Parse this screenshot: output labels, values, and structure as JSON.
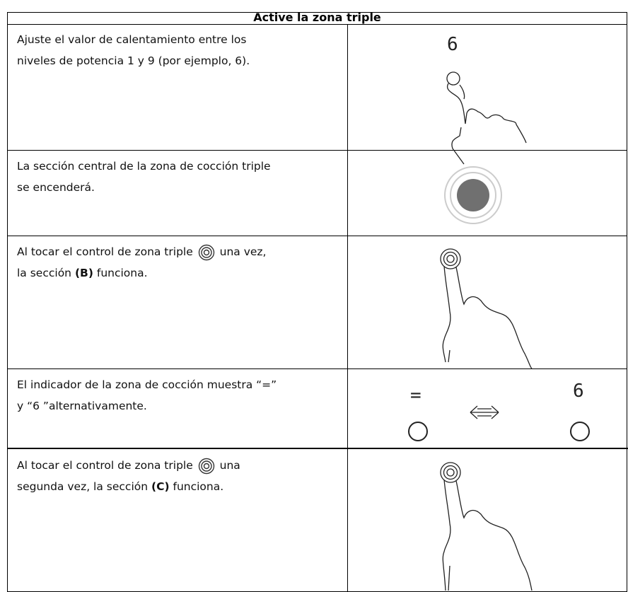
{
  "header": {
    "title": "Active la zona triple"
  },
  "rows": [
    {
      "text": [
        "Ajuste el valor de calentamiento entre los",
        "niveles de potencia 1 y 9 (por ejemplo, 6)."
      ],
      "display": "6"
    },
    {
      "text": [
        "La sección central de la zona de cocción triple",
        "se encenderá."
      ]
    },
    {
      "text": [
        "Al tocar el control de zona triple",
        "una vez,",
        "la sección",
        "(B)",
        "funciona."
      ]
    },
    {
      "text": [
        "El indicador de la zona de cocción muestra “=”",
        "y “6 ”alternativamente."
      ],
      "display_left": "=",
      "display_right": "6"
    },
    {
      "text": [
        "Al tocar el control de zona triple",
        "una",
        "segunda vez, la sección",
        "(C)",
        "funciona."
      ]
    }
  ]
}
